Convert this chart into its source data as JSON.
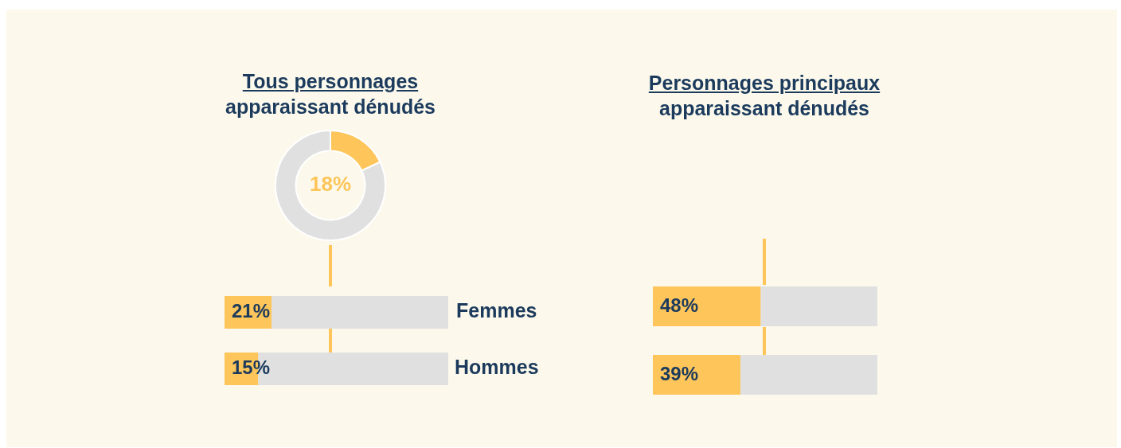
{
  "chart_data": [
    {
      "type": "donut",
      "title": "Tous personnages apparaissant dénudés",
      "categories": [
        null,
        null
      ],
      "values": [
        18,
        82
      ],
      "colors": [
        "#fdc55a",
        "#e0e0e0"
      ],
      "value_labels": [
        "18%",
        null
      ]
    },
    {
      "type": "bar",
      "orientation": "horizontal",
      "stacked": true,
      "categories": [
        "Femmes",
        "Hommes"
      ],
      "xlim": [
        0,
        100
      ],
      "tick_labels": "y",
      "series": [
        {
          "color": "#fdc55a",
          "values": [
            21,
            15
          ],
          "value_labels": [
            "21%",
            "15%"
          ]
        },
        {
          "color": "#e0e0e0",
          "values": [
            79,
            85
          ]
        }
      ]
    },
    {
      "type": "bar",
      "orientation": "horizontal",
      "stacked": true,
      "title": "Personnages principaux apparaissant dénudés",
      "categories": [
        null,
        null
      ],
      "xlim": [
        0,
        100
      ],
      "tick_labels": false,
      "series": [
        {
          "color": "#fdc55a",
          "values": [
            48,
            39
          ],
          "value_labels": [
            "48%",
            "39%"
          ]
        },
        {
          "color": "#e0e0e0",
          "values": [
            52,
            61
          ]
        }
      ]
    }
  ]
}
